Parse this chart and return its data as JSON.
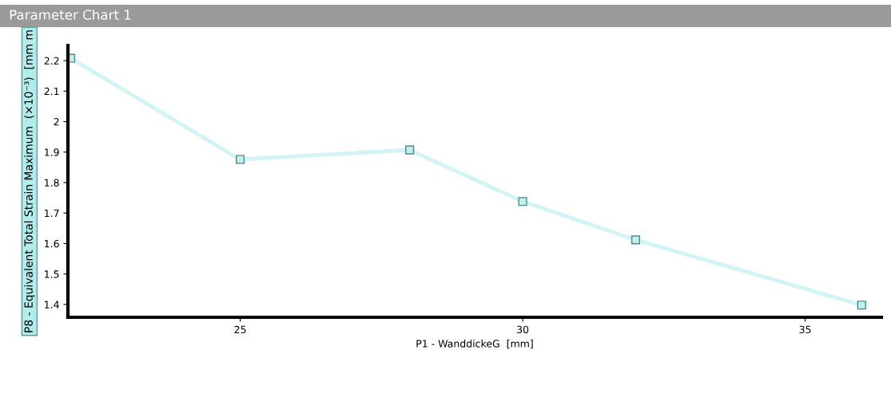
{
  "chart_data": {
    "type": "line",
    "title": "Parameter Chart 1",
    "xlabel": "P1 - WanddickeG  [mm]",
    "ylabel": "P8 - Equivalent Total Strain Maximum  (×10⁻³)  [mm m",
    "x": [
      22,
      25,
      28,
      30,
      32,
      36
    ],
    "series": [
      {
        "color": "#d2f4f4",
        "values": [
          2.208,
          1.876,
          1.907,
          1.738,
          1.612,
          1.398
        ]
      }
    ],
    "xlim": [
      21.95,
      36.35
    ],
    "ylim": [
      1.358,
      2.25
    ],
    "xticks": [
      25,
      30,
      35
    ],
    "yticks": [
      1.4,
      1.5,
      1.6,
      1.7,
      1.8,
      1.9,
      {
        "value": 2.0,
        "label": "2"
      },
      2.1,
      2.2
    ],
    "marker": "square",
    "grid": false
  }
}
